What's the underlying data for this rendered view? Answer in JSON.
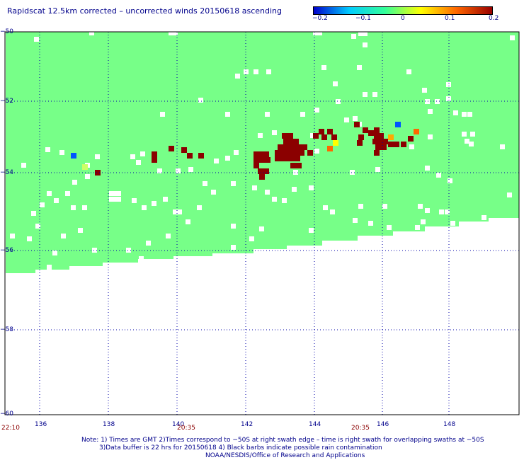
{
  "title": "Rapidscat 12.5km corrected – uncorrected winds 20150618 ascending",
  "colorbar": {
    "labels": [
      "−0.2",
      "−0.1",
      "0",
      "0.1",
      "0.2"
    ],
    "range": [
      -0.2,
      0.2
    ],
    "colors": [
      "#0000cc",
      "#00ccff",
      "#33ff99",
      "#ffff00",
      "#ff6600",
      "#990000"
    ]
  },
  "axes": {
    "lat_labels": [
      "−50",
      "−52",
      "−54",
      "−56",
      "−58",
      "−60"
    ],
    "lon_labels": [
      "136",
      "138",
      "140",
      "142",
      "144",
      "146",
      "148"
    ],
    "time_labels": [
      "22:10",
      "20:35",
      "20:35"
    ]
  },
  "notes": {
    "line1": "Note: 1) Times are GMT 2)Times correspond to −50S at right swath edge – time is right swath for overlapping swaths at −50S",
    "line2": "3)Data buffer is 22 hrs for 20150618 4) Black barbs indicate possible rain contamination",
    "line3": "NOAA/NESDIS/Office of Research and Applications"
  },
  "colors": {
    "swath": "#77ff88",
    "rain": "#8b0000",
    "grid": "#0000aa",
    "gap": "#ffffff"
  }
}
